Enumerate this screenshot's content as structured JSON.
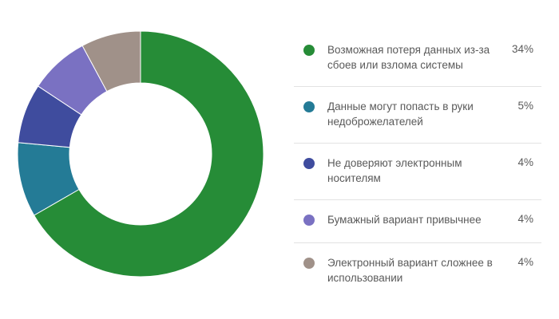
{
  "chart_data": {
    "type": "pie",
    "donut": true,
    "legend_position": "right",
    "categories": [
      "Возможная потеря данных из-за сбоев или взлома системы",
      "Данные могут попасть в руки недоброжелателей",
      "Не доверяют электронным носителям",
      "Бумажный вариант привычнее",
      "Электронный вариант сложнее в использовании"
    ],
    "values": [
      34,
      5,
      4,
      4,
      4
    ],
    "value_labels": [
      "34%",
      "5%",
      "4%",
      "4%",
      "4%"
    ],
    "colors": [
      "#268c37",
      "#247b96",
      "#3f4c9e",
      "#7a71c2",
      "#a09189"
    ]
  }
}
